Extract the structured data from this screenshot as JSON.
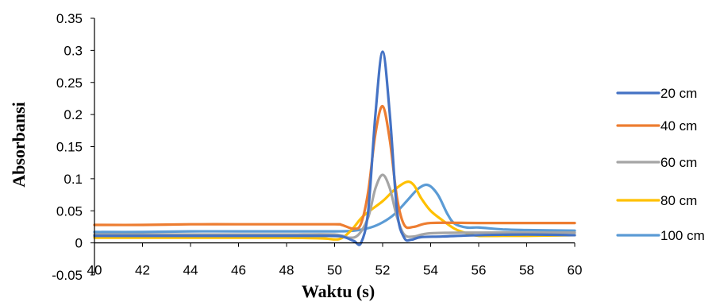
{
  "chart_data": {
    "type": "line",
    "title": "",
    "xlabel": "Waktu (s)",
    "ylabel": "Absorbansi",
    "xlim": [
      40,
      60
    ],
    "ylim": [
      -0.05,
      0.35
    ],
    "x_ticks": [
      "40",
      "42",
      "44",
      "46",
      "48",
      "50",
      "52",
      "54",
      "56",
      "58",
      "60"
    ],
    "y_ticks": [
      "0.35",
      "0.3",
      "0.25",
      "0.2",
      "0.15",
      "0.1",
      "0.05",
      "0",
      "-0.05"
    ],
    "grid": false,
    "legend_position": "right",
    "series": [
      {
        "name": "20 cm",
        "color": "#4472C4",
        "points": [
          [
            40,
            0.011
          ],
          [
            42,
            0.011
          ],
          [
            44,
            0.011
          ],
          [
            46,
            0.011
          ],
          [
            48,
            0.011
          ],
          [
            49.5,
            0.011
          ],
          [
            50.3,
            0.01
          ],
          [
            50.8,
            0.003
          ],
          [
            51.1,
            0.0
          ],
          [
            51.4,
            0.05
          ],
          [
            51.7,
            0.2
          ],
          [
            52,
            0.298
          ],
          [
            52.3,
            0.2
          ],
          [
            52.6,
            0.05
          ],
          [
            52.9,
            0.008
          ],
          [
            53.2,
            0.005
          ],
          [
            53.6,
            0.009
          ],
          [
            54.5,
            0.01
          ],
          [
            56,
            0.012
          ],
          [
            58,
            0.013
          ],
          [
            60,
            0.012
          ]
        ]
      },
      {
        "name": "40 cm",
        "color": "#ED7D31",
        "points": [
          [
            40,
            0.028
          ],
          [
            42,
            0.028
          ],
          [
            44,
            0.029
          ],
          [
            46,
            0.029
          ],
          [
            48,
            0.029
          ],
          [
            50,
            0.029
          ],
          [
            50.3,
            0.028
          ],
          [
            50.8,
            0.022
          ],
          [
            51.1,
            0.03
          ],
          [
            51.4,
            0.08
          ],
          [
            51.7,
            0.17
          ],
          [
            52,
            0.213
          ],
          [
            52.3,
            0.16
          ],
          [
            52.6,
            0.07
          ],
          [
            52.9,
            0.028
          ],
          [
            53.3,
            0.025
          ],
          [
            54,
            0.031
          ],
          [
            56,
            0.031
          ],
          [
            58,
            0.031
          ],
          [
            60,
            0.031
          ]
        ]
      },
      {
        "name": "60 cm",
        "color": "#A5A5A5",
        "points": [
          [
            40,
            0.013
          ],
          [
            42,
            0.013
          ],
          [
            44,
            0.013
          ],
          [
            46,
            0.013
          ],
          [
            48,
            0.013
          ],
          [
            50,
            0.013
          ],
          [
            50.6,
            0.008
          ],
          [
            51,
            0.013
          ],
          [
            51.4,
            0.04
          ],
          [
            51.7,
            0.085
          ],
          [
            52,
            0.106
          ],
          [
            52.3,
            0.085
          ],
          [
            52.6,
            0.04
          ],
          [
            52.9,
            0.013
          ],
          [
            53.3,
            0.01
          ],
          [
            54,
            0.015
          ],
          [
            56,
            0.016
          ],
          [
            58,
            0.016
          ],
          [
            60,
            0.016
          ]
        ]
      },
      {
        "name": "80 cm",
        "color": "#FFC000",
        "points": [
          [
            40,
            0.008
          ],
          [
            42,
            0.008
          ],
          [
            44,
            0.008
          ],
          [
            46,
            0.008
          ],
          [
            48,
            0.008
          ],
          [
            49.5,
            0.007
          ],
          [
            50.2,
            0.006
          ],
          [
            50.7,
            0.02
          ],
          [
            51.2,
            0.042
          ],
          [
            52,
            0.065
          ],
          [
            52.5,
            0.083
          ],
          [
            53,
            0.095
          ],
          [
            53.3,
            0.09
          ],
          [
            53.6,
            0.07
          ],
          [
            54,
            0.05
          ],
          [
            54.5,
            0.035
          ],
          [
            55,
            0.022
          ],
          [
            55.5,
            0.015
          ],
          [
            56,
            0.011
          ],
          [
            57,
            0.011
          ],
          [
            58,
            0.011
          ],
          [
            60,
            0.012
          ]
        ]
      },
      {
        "name": "100 cm",
        "color": "#5B9BD5",
        "points": [
          [
            40,
            0.017
          ],
          [
            42,
            0.017
          ],
          [
            44,
            0.018
          ],
          [
            46,
            0.018
          ],
          [
            48,
            0.018
          ],
          [
            50,
            0.018
          ],
          [
            50.8,
            0.019
          ],
          [
            51.5,
            0.024
          ],
          [
            52,
            0.032
          ],
          [
            52.5,
            0.045
          ],
          [
            53,
            0.065
          ],
          [
            53.5,
            0.085
          ],
          [
            53.9,
            0.09
          ],
          [
            54.3,
            0.075
          ],
          [
            54.7,
            0.045
          ],
          [
            55,
            0.03
          ],
          [
            55.5,
            0.024
          ],
          [
            56,
            0.024
          ],
          [
            57,
            0.021
          ],
          [
            58,
            0.02
          ],
          [
            60,
            0.019
          ]
        ]
      }
    ]
  }
}
